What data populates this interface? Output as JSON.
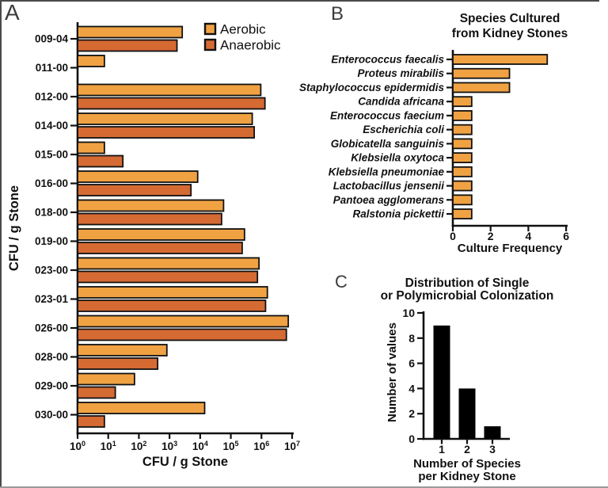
{
  "panel_a": {
    "label": "A",
    "y_axis_label": "CFU / g Stone",
    "x_axis_label": "CFU / g Stone",
    "legend": [
      {
        "label": "Aerobic",
        "color": "#F0A243"
      },
      {
        "label": "Anaerobic",
        "color": "#D5福6A33"
      }
    ]
  },
  "panel_b": {
    "label": "B",
    "title_line1": "Species Cultured",
    "title_line2": "from Kidney Stones",
    "x_axis_label": "Culture Frequency"
  },
  "panel_c": {
    "label": "C",
    "title_line1": "Distribution of Single",
    "title_line2": "or Polymicrobial Colonization",
    "y_axis_label": "Number of values",
    "x_axis_label_line1": "Number of Species",
    "x_axis_label_line2": "per Kidney Stone"
  },
  "colors": {
    "aerobic": "#F0A243",
    "anaerobic": "#D56A33",
    "black_bar": "#000000",
    "axis": "#111111"
  },
  "chart_data": [
    {
      "id": "cfu_by_stone",
      "type": "bar",
      "orientation": "horizontal",
      "xlabel": "CFU / g Stone",
      "ylabel": "CFU / g Stone",
      "x_scale": "log10",
      "x_ticks_exponents": [
        0,
        1,
        2,
        3,
        4,
        5,
        6,
        7
      ],
      "xlim": [
        1,
        10000000
      ],
      "legend_position": "top-right",
      "categories": [
        "009-04",
        "011-00",
        "012-00",
        "014-00",
        "015-00",
        "016-00",
        "018-00",
        "019-00",
        "023-00",
        "023-01",
        "026-00",
        "028-00",
        "029-00",
        "030-00"
      ],
      "series": [
        {
          "name": "Aerobic",
          "color": "#F0A243",
          "values": [
            2600,
            7.5,
            950000,
            500000,
            7.5,
            8300,
            58000,
            280000,
            830000,
            1560000,
            7500000,
            820,
            72,
            14000
          ]
        },
        {
          "name": "Anaerobic",
          "color": "#D56A33",
          "values": [
            1750,
            null,
            1300000,
            580000,
            30,
            5000,
            50000,
            235000,
            740000,
            1360000,
            6500000,
            410,
            17,
            7.5
          ]
        }
      ]
    },
    {
      "id": "species_frequency",
      "type": "bar",
      "orientation": "horizontal",
      "title": "Species Cultured from Kidney Stones",
      "xlabel": "Culture Frequency",
      "x_ticks": [
        0,
        2,
        4,
        6
      ],
      "xlim": [
        0,
        6
      ],
      "bar_color": "#F0A243",
      "categories": [
        "Enterococcus faecalis",
        "Proteus mirabilis",
        "Staphylococcus epidermidis",
        "Candida africana",
        "Enterococcus faecium",
        "Escherichia coli",
        "Globicatella sanguinis",
        "Klebsiella oxytoca",
        "Klebsiella pneumoniae",
        "Lactobacillus jensenii",
        "Pantoea agglomerans",
        "Ralstonia pickettii"
      ],
      "values": [
        5,
        3,
        3,
        1,
        1,
        1,
        1,
        1,
        1,
        1,
        1,
        1
      ]
    },
    {
      "id": "colonization_distribution",
      "type": "bar",
      "orientation": "vertical",
      "title": "Distribution of Single or Polymicrobial Colonization",
      "xlabel": "Number of Species per Kidney Stone",
      "ylabel": "Number of values",
      "y_ticks": [
        0,
        2,
        4,
        6,
        8,
        10
      ],
      "ylim": [
        0,
        10
      ],
      "bar_color": "#000000",
      "categories": [
        "1",
        "2",
        "3"
      ],
      "values": [
        9,
        4,
        1
      ]
    }
  ]
}
